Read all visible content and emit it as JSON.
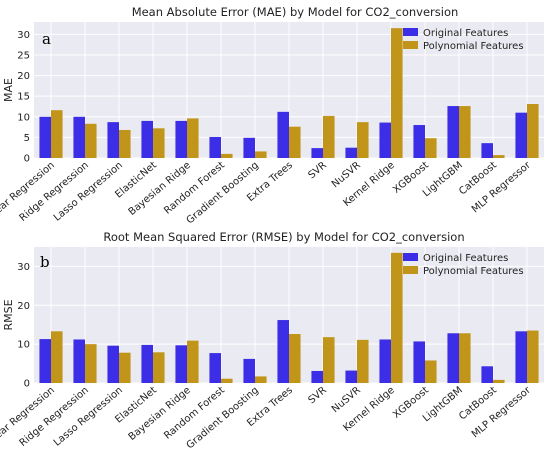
{
  "chart_data": [
    {
      "type": "bar",
      "title": "Mean Absolute Error (MAE) by Model for CO2_conversion",
      "panel_label": "a",
      "ylabel": "MAE",
      "xlabel": "",
      "ylim": [
        0,
        33
      ],
      "yticks": [
        0,
        5,
        10,
        15,
        20,
        25,
        30
      ],
      "legend_position": "top-right",
      "grid": true,
      "categories": [
        "Linear Regression",
        "Ridge Regression",
        "Lasso Regression",
        "ElasticNet",
        "Bayesian Ridge",
        "Random Forest",
        "Gradient Boosting",
        "Extra Trees",
        "SVR",
        "NuSVR",
        "Kernel Ridge",
        "XGBoost",
        "LightGBM",
        "CatBoost",
        "MLP Regressor"
      ],
      "series": [
        {
          "name": "Original Features",
          "color": "#3c2ee6",
          "values": [
            10.0,
            10.0,
            8.7,
            9.0,
            9.0,
            5.1,
            4.9,
            11.2,
            2.4,
            2.5,
            8.6,
            8.0,
            12.6,
            3.6,
            11.0
          ]
        },
        {
          "name": "Polynomial Features",
          "color": "#c1951a",
          "values": [
            11.6,
            8.3,
            6.8,
            7.2,
            9.6,
            1.0,
            1.6,
            7.6,
            10.2,
            8.7,
            31.5,
            4.8,
            12.6,
            0.7,
            13.1
          ]
        }
      ]
    },
    {
      "type": "bar",
      "title": "Root Mean Squared Error (RMSE) by Model for CO2_conversion",
      "panel_label": "b",
      "ylabel": "RMSE",
      "xlabel": "",
      "ylim": [
        0,
        35
      ],
      "yticks": [
        0,
        10,
        20,
        30
      ],
      "legend_position": "top-right",
      "grid": true,
      "categories": [
        "Linear Regression",
        "Ridge Regression",
        "Lasso Regression",
        "ElasticNet",
        "Bayesian Ridge",
        "Random Forest",
        "Gradient Boosting",
        "Extra Trees",
        "SVR",
        "NuSVR",
        "Kernel Ridge",
        "XGBoost",
        "LightGBM",
        "CatBoost",
        "MLP Regressor"
      ],
      "series": [
        {
          "name": "Original Features",
          "color": "#3c2ee6",
          "values": [
            11.3,
            11.2,
            9.6,
            9.8,
            9.7,
            7.7,
            6.2,
            16.2,
            3.1,
            3.2,
            11.2,
            10.7,
            12.8,
            4.3,
            13.3
          ]
        },
        {
          "name": "Polynomial Features",
          "color": "#c1951a",
          "values": [
            13.3,
            10.0,
            7.8,
            7.9,
            10.9,
            1.1,
            1.7,
            12.6,
            11.8,
            11.1,
            33.5,
            5.8,
            12.8,
            0.8,
            13.5
          ]
        }
      ]
    }
  ]
}
